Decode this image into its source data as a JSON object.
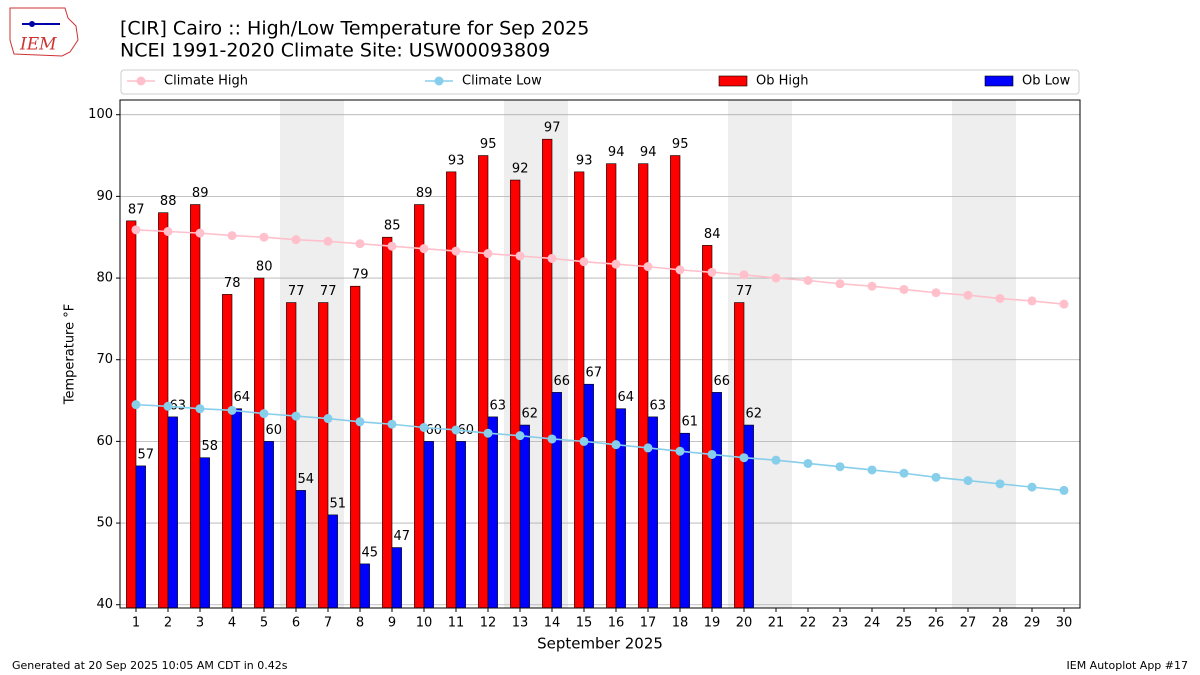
{
  "logo_text": "IEM",
  "footer_left": "Generated at 20 Sep 2025 10:05 AM CDT in 0.42s",
  "footer_right": "IEM Autoplot App #17",
  "chart_data": {
    "type": "bar_line",
    "title": "[CIR] Cairo :: High/Low Temperature for Sep 2025",
    "subtitle": "NCEI 1991-2020 Climate Site: USW00093809",
    "x_label": "September 2025",
    "y_label": "Temperature °F",
    "x": [
      1,
      2,
      3,
      4,
      5,
      6,
      7,
      8,
      9,
      10,
      11,
      12,
      13,
      14,
      15,
      16,
      17,
      18,
      19,
      20,
      21,
      22,
      23,
      24,
      25,
      26,
      27,
      28,
      29,
      30
    ],
    "xlim": [
      0.5,
      30.5
    ],
    "xticks": [
      1,
      2,
      3,
      4,
      5,
      6,
      7,
      8,
      9,
      10,
      11,
      12,
      13,
      14,
      15,
      16,
      17,
      18,
      19,
      20,
      21,
      22,
      23,
      24,
      25,
      26,
      27,
      28,
      29,
      30
    ],
    "ylim": [
      39.6,
      101.8
    ],
    "yticks": [
      40,
      50,
      60,
      70,
      80,
      90,
      100
    ],
    "grid": true,
    "shaded_ranges": [
      [
        5.5,
        7.5
      ],
      [
        12.5,
        14.5
      ],
      [
        19.5,
        21.5
      ],
      [
        26.5,
        28.5
      ]
    ],
    "shade_color": "#eeeeee",
    "series": [
      {
        "name": "Climate High",
        "kind": "line",
        "color": "#ffc0cb",
        "values": [
          85.9,
          85.7,
          85.5,
          85.2,
          85.0,
          84.7,
          84.5,
          84.2,
          83.9,
          83.6,
          83.3,
          83.0,
          82.7,
          82.4,
          82.0,
          81.7,
          81.4,
          81.0,
          80.7,
          80.4,
          80.0,
          79.7,
          79.3,
          79.0,
          78.6,
          78.2,
          77.9,
          77.5,
          77.2,
          76.8
        ]
      },
      {
        "name": "Climate Low",
        "kind": "line",
        "color": "#87ceeb",
        "values": [
          64.5,
          64.3,
          64.0,
          63.8,
          63.4,
          63.1,
          62.8,
          62.4,
          62.1,
          61.7,
          61.4,
          61.0,
          60.7,
          60.3,
          60.0,
          59.6,
          59.2,
          58.8,
          58.4,
          58.0,
          57.7,
          57.3,
          56.9,
          56.5,
          56.1,
          55.6,
          55.2,
          54.8,
          54.4,
          54.0
        ]
      },
      {
        "name": "Ob High",
        "kind": "bar",
        "color": "#ff0000",
        "values": [
          87,
          88,
          89,
          78,
          80,
          77,
          77,
          79,
          85,
          89,
          93,
          95,
          92,
          97,
          93,
          94,
          94,
          95,
          84,
          77,
          null,
          null,
          null,
          null,
          null,
          null,
          null,
          null,
          null,
          null
        ]
      },
      {
        "name": "Ob Low",
        "kind": "bar",
        "color": "#0000ff",
        "values": [
          57,
          63,
          58,
          64,
          60,
          54,
          51,
          45,
          47,
          60,
          60,
          63,
          62,
          66,
          67,
          64,
          63,
          61,
          66,
          62,
          null,
          null,
          null,
          null,
          null,
          null,
          null,
          null,
          null,
          null
        ]
      }
    ]
  }
}
